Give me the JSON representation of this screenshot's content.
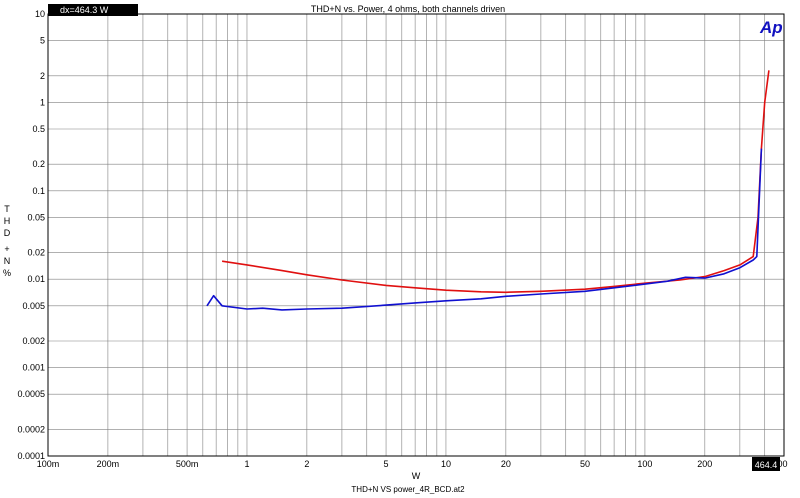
{
  "chart_data": {
    "type": "line",
    "title": "THD+N vs. Power, 4 ohms, both channels driven",
    "xlabel": "W",
    "ylabel": "THD + N %",
    "footer": "THD+N VS power_4R_BCD.at2",
    "logo": "Ap",
    "cursor_readout": "dx=464.3  W",
    "cursor_value_label": "464.4",
    "x_scale": "log",
    "y_scale": "log",
    "xlim": [
      0.1,
      500
    ],
    "ylim": [
      0.0001,
      10
    ],
    "grid": true,
    "x_ticks": [
      {
        "v": 0.1,
        "label": "100m"
      },
      {
        "v": 0.2,
        "label": "200m"
      },
      {
        "v": 0.5,
        "label": "500m"
      },
      {
        "v": 1,
        "label": "1"
      },
      {
        "v": 2,
        "label": "2"
      },
      {
        "v": 5,
        "label": "5"
      },
      {
        "v": 10,
        "label": "10"
      },
      {
        "v": 20,
        "label": "20"
      },
      {
        "v": 50,
        "label": "50"
      },
      {
        "v": 100,
        "label": "100"
      },
      {
        "v": 200,
        "label": "200"
      },
      {
        "v": 500,
        "label": "500"
      }
    ],
    "y_ticks": [
      {
        "v": 10,
        "label": "10"
      },
      {
        "v": 5,
        "label": "5"
      },
      {
        "v": 2,
        "label": "2"
      },
      {
        "v": 1,
        "label": "1"
      },
      {
        "v": 0.5,
        "label": "0.5"
      },
      {
        "v": 0.2,
        "label": "0.2"
      },
      {
        "v": 0.1,
        "label": "0.1"
      },
      {
        "v": 0.05,
        "label": "0.05"
      },
      {
        "v": 0.02,
        "label": "0.02"
      },
      {
        "v": 0.01,
        "label": "0.01"
      },
      {
        "v": 0.005,
        "label": "0.005"
      },
      {
        "v": 0.002,
        "label": "0.002"
      },
      {
        "v": 0.001,
        "label": "0.001"
      },
      {
        "v": 0.0005,
        "label": "0.0005"
      },
      {
        "v": 0.0002,
        "label": "0.0002"
      },
      {
        "v": 0.0001,
        "label": "0.0001"
      }
    ],
    "series": [
      {
        "color": "#e01010",
        "points": [
          [
            0.75,
            0.016
          ],
          [
            1,
            0.0145
          ],
          [
            1.5,
            0.0125
          ],
          [
            2,
            0.0112
          ],
          [
            3,
            0.0098
          ],
          [
            5,
            0.0085
          ],
          [
            7,
            0.008
          ],
          [
            10,
            0.0075
          ],
          [
            15,
            0.0072
          ],
          [
            20,
            0.0071
          ],
          [
            30,
            0.0073
          ],
          [
            50,
            0.0077
          ],
          [
            70,
            0.0083
          ],
          [
            100,
            0.009
          ],
          [
            150,
            0.0098
          ],
          [
            200,
            0.0107
          ],
          [
            250,
            0.0125
          ],
          [
            300,
            0.0145
          ],
          [
            350,
            0.018
          ],
          [
            370,
            0.05
          ],
          [
            385,
            0.3
          ],
          [
            400,
            1.0
          ],
          [
            420,
            2.3
          ]
        ]
      },
      {
        "color": "#1010d0",
        "points": [
          [
            0.63,
            0.005
          ],
          [
            0.68,
            0.0065
          ],
          [
            0.75,
            0.005
          ],
          [
            1,
            0.0046
          ],
          [
            1.2,
            0.0047
          ],
          [
            1.5,
            0.0045
          ],
          [
            2,
            0.0046
          ],
          [
            3,
            0.0047
          ],
          [
            5,
            0.0051
          ],
          [
            7,
            0.0054
          ],
          [
            10,
            0.0057
          ],
          [
            15,
            0.006
          ],
          [
            20,
            0.0064
          ],
          [
            30,
            0.0068
          ],
          [
            50,
            0.0073
          ],
          [
            70,
            0.008
          ],
          [
            100,
            0.0088
          ],
          [
            130,
            0.0095
          ],
          [
            160,
            0.0105
          ],
          [
            200,
            0.0103
          ],
          [
            250,
            0.0115
          ],
          [
            300,
            0.0135
          ],
          [
            350,
            0.0165
          ],
          [
            365,
            0.018
          ],
          [
            385,
            0.3
          ]
        ]
      }
    ]
  },
  "colors": {
    "grid": "#808080",
    "frame": "#000000",
    "logo": "#1010c0"
  }
}
